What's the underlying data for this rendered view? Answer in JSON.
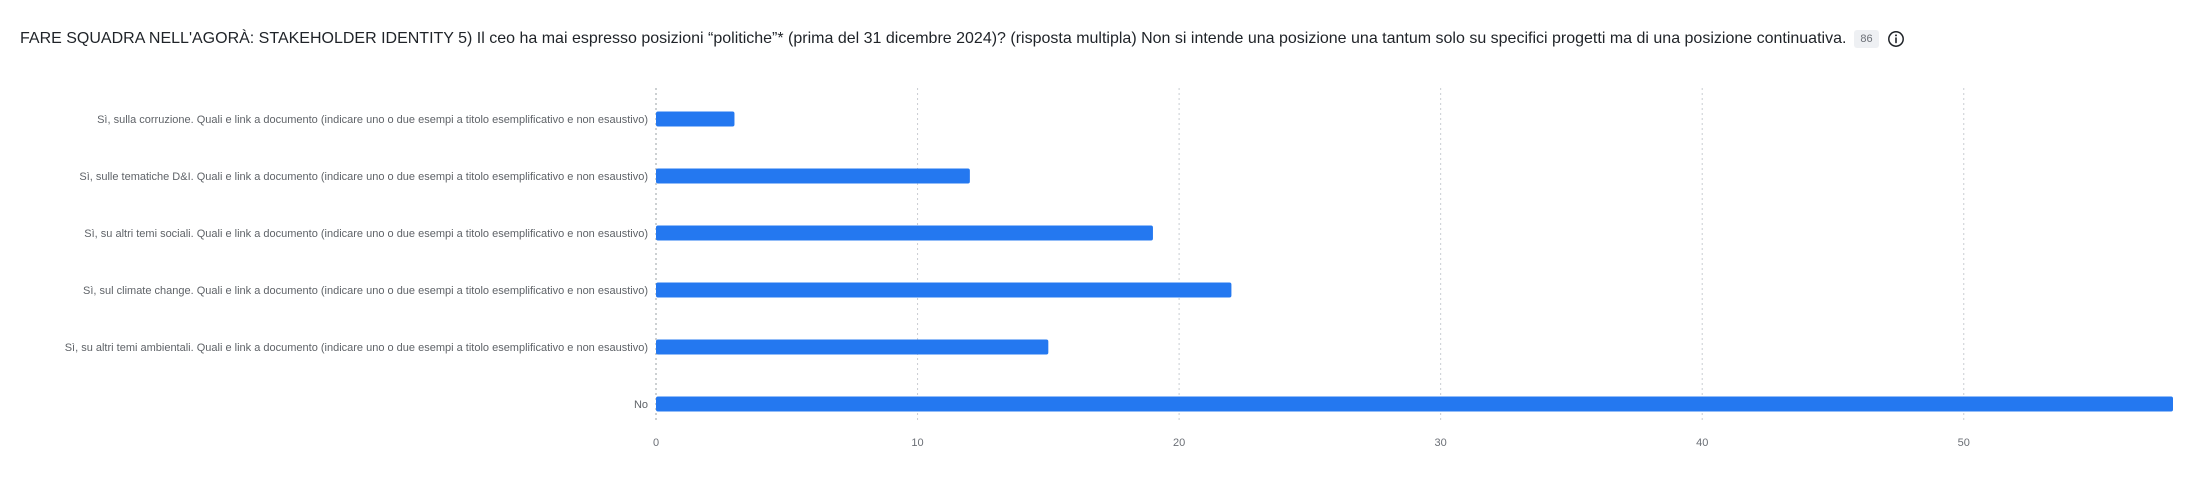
{
  "header": {
    "title": "FARE SQUADRA NELL'AGORÀ: STAKEHOLDER IDENTITY 5) Il ceo ha mai espresso posizioni “politiche”* (prima del 31 dicembre 2024)? (risposta multipla) Non si intende una posizione una tantum solo su specifici progetti ma di una posizione continuativa.",
    "count_badge": "86",
    "info_icon": "info-circle-icon"
  },
  "colors": {
    "bar": "#2478f0",
    "grid": "#c9cdd2",
    "axis": "#9aa0a6"
  },
  "chart_data": {
    "type": "bar",
    "orientation": "horizontal",
    "title": "",
    "xlabel": "",
    "ylabel": "",
    "categories": [
      "Sì, sulla corruzione. Quali e link a documento (indicare uno o due esempi a titolo esemplificativo e non esaustivo)",
      "Sì, sulle tematiche D&I. Quali e link a documento (indicare uno o due esempi a titolo esemplificativo e non esaustivo)",
      "Sì, su altri temi sociali. Quali e link a documento (indicare uno o due esempi a titolo esemplificativo e non esaustivo)",
      "Sì, sul climate change. Quali e link a documento (indicare uno o due esempi a titolo esemplificativo e non esaustivo)",
      "Sì, su altri temi ambientali. Quali e link a documento (indicare uno o due esempi a titolo esemplificativo e non esaustivo)",
      "No"
    ],
    "values": [
      3,
      12,
      19,
      22,
      15,
      58
    ],
    "xlim": [
      0,
      58
    ],
    "xticks": [
      0,
      10,
      20,
      30,
      40,
      50
    ],
    "xtick_labels": [
      "0",
      "10",
      "20",
      "30",
      "40",
      "50"
    ],
    "grid": "vertical dotted"
  }
}
